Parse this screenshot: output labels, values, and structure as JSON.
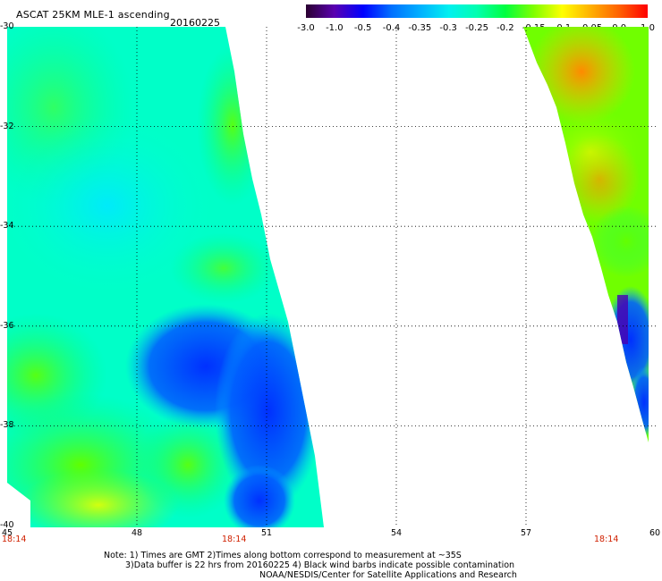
{
  "header": {
    "title": "ASCAT 25KM MLE-1 ascending",
    "date": "20160225"
  },
  "colorbar": {
    "ticks": [
      "-3.0",
      "-1.0",
      "-0.5",
      "-0.4",
      "-0.35",
      "-0.3",
      "-0.25",
      "-0.2",
      "-0.15",
      "-0.1",
      "-0.05",
      "0.0",
      "1.0"
    ],
    "colors": [
      "#2a0030",
      "#5a00b0",
      "#0000ff",
      "#0070ff",
      "#00b0ff",
      "#00f0f0",
      "#00ffb0",
      "#00ff40",
      "#80ff00",
      "#ffff00",
      "#ffb000",
      "#ff6000",
      "#ff0000"
    ]
  },
  "map": {
    "lat_labels": [
      "-30",
      "-32",
      "-34",
      "-36",
      "-38",
      "-40"
    ],
    "lon_labels": [
      "45",
      "48",
      "51",
      "54",
      "57",
      "60"
    ],
    "time_labels": [
      "18:14",
      "18:14",
      "18:14"
    ]
  },
  "notes": {
    "line1": "Note: 1) Times are GMT 2)Times along bottom correspond to measurement at ~35S",
    "line2": "3)Data buffer is 22 hrs from 20160225 4) Black wind barbs indicate possible contamination",
    "line3": "NOAA/NESDIS/Center for Satellite Applications and Research"
  }
}
